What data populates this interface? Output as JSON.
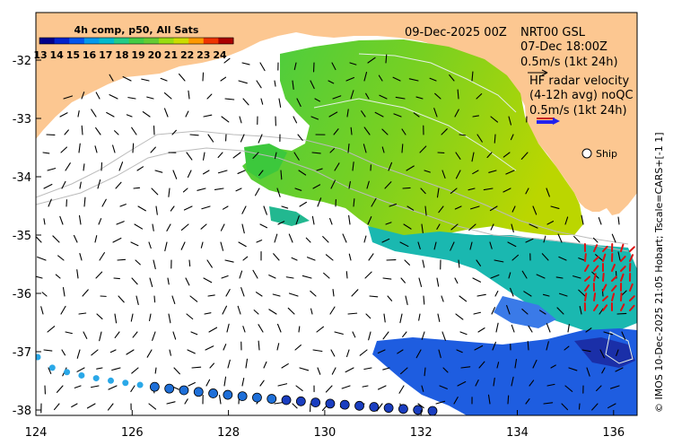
{
  "colorbar": {
    "title": "4h comp, p50, All Sats",
    "ticks": [
      "13",
      "14",
      "15",
      "16",
      "17",
      "18",
      "19",
      "20",
      "21",
      "22",
      "23",
      "24"
    ],
    "colors": [
      "#00008b",
      "#0022cc",
      "#0055ee",
      "#0099ee",
      "#00bbcc",
      "#22cc88",
      "#44cc44",
      "#66cc33",
      "#99dd11",
      "#ccdd00",
      "#ff9900",
      "#ee3300",
      "#aa0000"
    ]
  },
  "header": {
    "date": "09-Dec-2025 00Z",
    "product": "NRT00 GSL",
    "time": "07-Dec 18:00Z",
    "scale_label": "0.5m/s (1kt 24h)"
  },
  "hf_radar": {
    "line1": "HF radar velocity",
    "line2": "(4-12h avg) noQC",
    "scale_label": "0.5m/s (1kt 24h)"
  },
  "ship_label": "Ship",
  "credit": "© IMOS 10-Dec-2025 21:05 Hobart; Tscale=CARS+[-1 1]",
  "axes": {
    "x_ticks": [
      "124",
      "126",
      "128",
      "130",
      "132",
      "134",
      "136"
    ],
    "y_ticks": [
      "-32",
      "-33",
      "-34",
      "-35",
      "-36",
      "-37",
      "-38"
    ]
  },
  "colors": {
    "land": "#fcc791",
    "ocean": "#ffffff",
    "green": "#3cc83c",
    "cyan": "#1ab8b0",
    "blue": "#1e5de0",
    "radar": "#dd1111"
  }
}
